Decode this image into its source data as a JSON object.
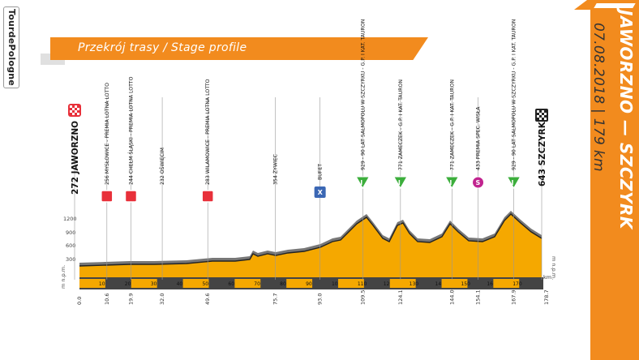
{
  "logo": {
    "text": "TourdePologne"
  },
  "banner": {
    "title": "Przekrój trasy / Stage profile"
  },
  "stage": {
    "title": "JAWORZNO — SZCZYRK",
    "date_line": "07.08.2018 | 179 km"
  },
  "colors": {
    "accent": "#f28b1e",
    "profile_fill": "#f5a800",
    "profile_edge": "#666666",
    "road": "#222222"
  },
  "start": {
    "label": "272 JAWORZNO",
    "icon": "start-checkered-red"
  },
  "finish": {
    "label": "643 SZCZYRK",
    "icon": "finish-checkered-black"
  },
  "waypoints": [
    {
      "label": "256 MYSŁOWICE - PREMIA LOTNA LOTTO",
      "km": "10.6",
      "icon": "sprint-red"
    },
    {
      "label": "244 CHEŁM ŚLĄSKI - PREMIA LOTNA LOTTO",
      "km": "19.9",
      "icon": "sprint-red"
    },
    {
      "label": "232 OŚWIĘCIM",
      "km": "32.0",
      "icon": ""
    },
    {
      "label": "283 WILAMOWICE - PREMIA LOTNA LOTTO",
      "km": "49.6",
      "icon": "sprint-red"
    },
    {
      "label": "354 ŻYWIEC",
      "km": "75.7",
      "icon": ""
    },
    {
      "label": "BUFET",
      "km": "93.0",
      "icon": "feed-blue"
    },
    {
      "label": "929 - 90 LAT SALMOPOLU W SZCZYRKU - G.P. I KAT. TAURON",
      "km": "109.5",
      "icon": "kom-green"
    },
    {
      "label": "771 ZAMECZEK - G.P. I KAT. TAURON",
      "km": "124.1",
      "icon": "kom-green"
    },
    {
      "label": "771 ZAMECZEK - G.P. I KAT. TAURON",
      "km": "144.0",
      "icon": "kom-green"
    },
    {
      "label": "433 PREMIA SPEC. WISŁA",
      "km": "154.1",
      "icon": "special-magenta"
    },
    {
      "label": "929 - 90 LAT SALMOPOLU W SZCZYRKU - G.P. I KAT. TAURON",
      "km": "167.9",
      "icon": "kom-green"
    }
  ],
  "axis": {
    "y_ticks": [
      "1200",
      "900",
      "600",
      "300"
    ],
    "y_unit": "m n.p.m.",
    "x_unit": "km",
    "start_km": "0.0",
    "finish_km": "178.7",
    "band_ticks": [
      "10",
      "20",
      "30",
      "40",
      "50",
      "60",
      "70",
      "80",
      "90",
      "100",
      "110",
      "120",
      "130",
      "140",
      "150",
      "160",
      "170"
    ]
  },
  "icon_letters": {
    "kom": "I",
    "special": "S",
    "feed": "X"
  }
}
